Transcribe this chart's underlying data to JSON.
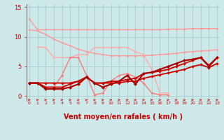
{
  "background_color": "#cce8e8",
  "grid_color": "#aacccc",
  "xlabel": "Vent moyen/en rafales ( km/h )",
  "xlabel_color": "#cc0000",
  "xlabel_fontsize": 7,
  "tick_color": "#cc0000",
  "yticks": [
    0,
    5,
    10,
    15
  ],
  "xticks": [
    0,
    1,
    2,
    3,
    4,
    5,
    6,
    7,
    8,
    9,
    10,
    11,
    12,
    13,
    14,
    15,
    16,
    17,
    18,
    19,
    20,
    21,
    22,
    23
  ],
  "xlim": [
    -0.3,
    23.3
  ],
  "ylim": [
    -0.8,
    15.5
  ],
  "lines": [
    {
      "x": [
        0,
        1,
        2,
        3,
        4,
        5,
        6,
        7,
        8,
        9,
        10,
        11,
        12,
        13,
        14,
        15,
        16,
        17,
        18,
        19,
        20,
        21,
        22,
        23
      ],
      "y": [
        13.0,
        11.2,
        11.2,
        11.2,
        11.2,
        11.2,
        11.2,
        11.2,
        11.2,
        11.2,
        11.2,
        11.2,
        11.2,
        11.2,
        11.2,
        11.2,
        11.2,
        11.3,
        11.3,
        11.3,
        11.4,
        11.4,
        11.4,
        11.4
      ],
      "color": "#ff9999",
      "linewidth": 1.0,
      "marker": "D",
      "markersize": 1.8
    },
    {
      "x": [
        0,
        1,
        2,
        3,
        4,
        5,
        6,
        7,
        8,
        9,
        10,
        11,
        12,
        13,
        14,
        15,
        16,
        17,
        18,
        19,
        20,
        21,
        22,
        23
      ],
      "y": [
        11.2,
        11.0,
        10.4,
        9.6,
        9.0,
        8.5,
        7.9,
        7.5,
        7.2,
        7.0,
        6.8,
        6.8,
        6.8,
        6.8,
        6.8,
        6.9,
        7.0,
        7.1,
        7.2,
        7.4,
        7.5,
        7.6,
        7.7,
        7.8
      ],
      "color": "#ff9999",
      "linewidth": 1.0,
      "marker": "D",
      "markersize": 1.8
    },
    {
      "x": [
        1,
        2,
        3,
        4,
        5,
        6,
        7,
        8,
        9,
        10,
        11,
        12,
        13,
        14,
        15,
        16,
        17
      ],
      "y": [
        8.3,
        8.2,
        6.5,
        6.5,
        6.5,
        7.0,
        7.0,
        8.2,
        8.2,
        8.2,
        8.2,
        8.2,
        7.5,
        7.0,
        4.5,
        0.5,
        0.5
      ],
      "color": "#ffaaaa",
      "linewidth": 1.0,
      "marker": "D",
      "markersize": 1.8
    },
    {
      "x": [
        1,
        2,
        3,
        4,
        5,
        6,
        7,
        8,
        9,
        10,
        11,
        12,
        13,
        14,
        15,
        16,
        17
      ],
      "y": [
        2.3,
        1.5,
        1.5,
        3.5,
        6.5,
        6.5,
        3.5,
        0.2,
        0.5,
        2.5,
        3.5,
        3.8,
        3.2,
        2.2,
        0.5,
        0.2,
        0.2
      ],
      "color": "#ff7777",
      "linewidth": 1.0,
      "marker": "D",
      "markersize": 1.8
    },
    {
      "x": [
        0,
        1,
        2,
        3,
        4,
        5,
        6,
        7,
        8,
        9,
        10,
        11,
        12,
        13,
        14,
        15,
        16,
        17,
        18,
        19,
        20,
        21,
        22,
        23
      ],
      "y": [
        2.2,
        2.2,
        2.2,
        2.2,
        2.2,
        2.2,
        2.5,
        3.2,
        2.2,
        2.2,
        2.5,
        2.5,
        2.8,
        3.0,
        3.8,
        4.0,
        4.2,
        4.5,
        5.0,
        5.5,
        6.0,
        6.5,
        5.2,
        6.5
      ],
      "color": "#cc0000",
      "linewidth": 1.3,
      "marker": "D",
      "markersize": 2.2
    },
    {
      "x": [
        0,
        1,
        2,
        3,
        4,
        5,
        6,
        7,
        8,
        9,
        10,
        11,
        12,
        13,
        14,
        15,
        16,
        17,
        18,
        19,
        20,
        21,
        22,
        23
      ],
      "y": [
        2.2,
        2.2,
        1.5,
        1.5,
        1.5,
        2.0,
        2.5,
        3.2,
        2.2,
        2.2,
        2.2,
        2.2,
        2.5,
        2.5,
        3.0,
        3.3,
        3.6,
        3.9,
        4.2,
        4.5,
        5.0,
        5.3,
        4.8,
        5.5
      ],
      "color": "#cc0000",
      "linewidth": 1.3,
      "marker": "D",
      "markersize": 2.2
    },
    {
      "x": [
        0,
        1,
        2,
        3,
        4,
        5,
        6,
        7,
        8,
        9,
        10,
        11,
        12,
        13,
        14,
        15,
        16,
        17,
        18,
        19,
        20,
        21,
        22,
        23
      ],
      "y": [
        2.2,
        2.2,
        1.2,
        1.2,
        1.2,
        1.5,
        2.0,
        3.2,
        2.2,
        1.5,
        2.0,
        2.5,
        3.5,
        2.0,
        3.8,
        4.0,
        4.5,
        5.0,
        5.5,
        6.0,
        6.2,
        6.5,
        5.0,
        6.5
      ],
      "color": "#aa0000",
      "linewidth": 1.5,
      "marker": "D",
      "markersize": 2.5
    }
  ],
  "arrow_color": "#cc0000"
}
